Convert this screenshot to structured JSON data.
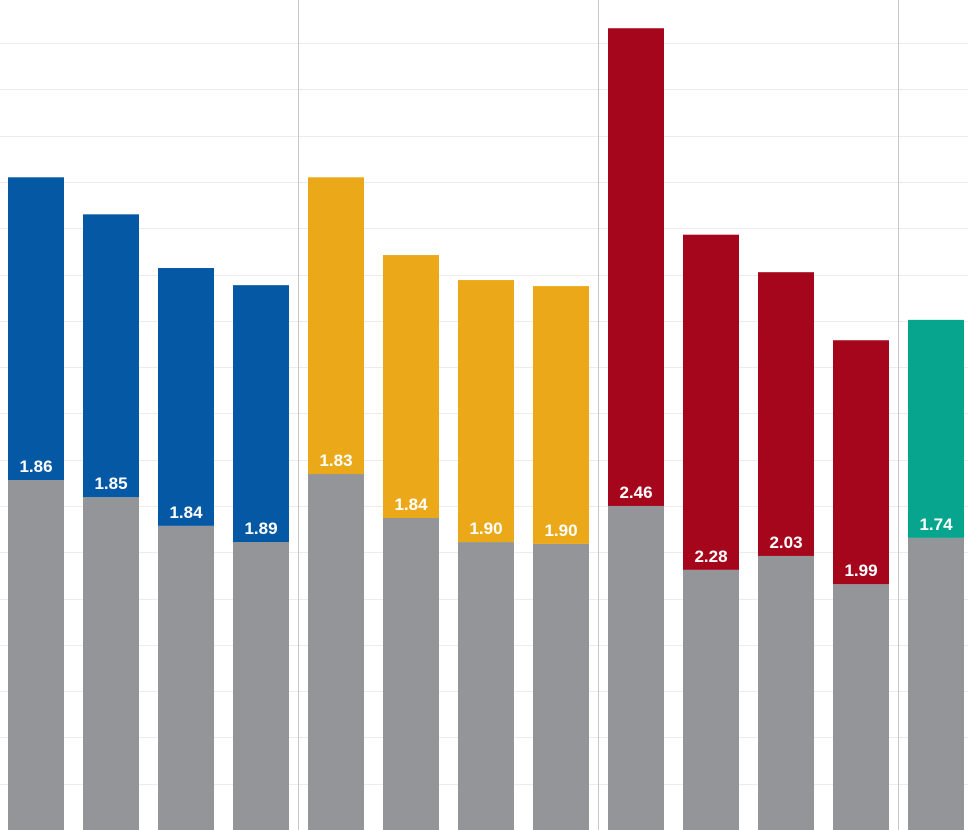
{
  "chart_data": {
    "type": "stacked-bar",
    "ylim": [
      0,
      17.93
    ],
    "yticks": [
      0,
      1,
      2,
      3,
      4,
      5,
      6,
      7,
      8,
      9,
      10,
      11,
      12,
      13,
      14,
      15,
      16,
      17
    ],
    "grid": true,
    "series": [
      {
        "color": "#939598",
        "values": [
          7.56,
          7.19,
          6.57,
          6.22,
          7.69,
          6.74,
          6.22,
          6.18,
          7.0,
          5.62,
          5.92,
          5.31,
          6.31
        ]
      },
      {
        "colors": [
          "#0559a4",
          "#0559a4",
          "#0559a4",
          "#0559a4",
          "#eba91a",
          "#eba91a",
          "#eba91a",
          "#eba91a",
          "#a6061b",
          "#a6061b",
          "#a6061b",
          "#a6061b",
          "#07a58e"
        ],
        "values": [
          6.54,
          6.11,
          5.57,
          5.55,
          6.41,
          5.68,
          5.66,
          5.57,
          10.32,
          7.24,
          6.13,
          5.27,
          4.71
        ],
        "labels": [
          "1.86",
          "1.85",
          "1.84",
          "1.89",
          "1.83",
          "1.84",
          "1.90",
          "1.90",
          "2.46",
          "2.28",
          "2.03",
          "1.99",
          "1.74"
        ]
      }
    ]
  }
}
